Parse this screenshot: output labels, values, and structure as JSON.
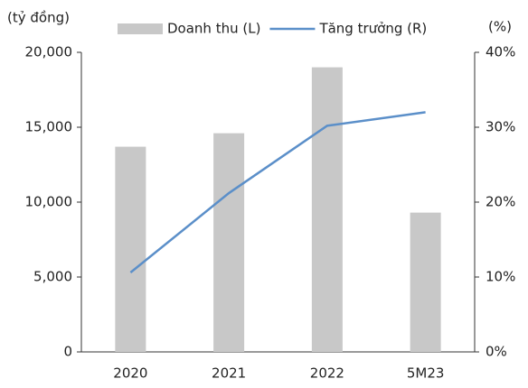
{
  "chart_data": {
    "type": "bar_line",
    "y_label": "(tỷ đồng)",
    "y2_label": "(%)",
    "categories": [
      "2020",
      "2021",
      "2022",
      "5M23"
    ],
    "series": [
      {
        "name": "Doanh thu (L)",
        "type": "bar",
        "color": "#c8c8c8",
        "values": [
          13700,
          14600,
          19000,
          9300
        ]
      },
      {
        "name": "Tăng trưởng (R)",
        "type": "line",
        "axis": "y2",
        "color": "#5b8fc9",
        "values": [
          10.6,
          21.2,
          30.2,
          32
        ]
      }
    ],
    "ylim": [
      0,
      20000
    ],
    "yticks": [
      0,
      {
        "value": 5000,
        "label": "5,000"
      },
      {
        "value": 10000,
        "label": "10,000"
      },
      {
        "value": 15000,
        "label": "15,000"
      },
      {
        "value": 20000,
        "label": "20,000"
      }
    ],
    "y2lim": [
      0,
      40
    ],
    "y2ticks": [
      {
        "value": 0,
        "label": "0%"
      },
      {
        "value": 10,
        "label": "10%"
      },
      {
        "value": 20,
        "label": "20%"
      },
      {
        "value": 30,
        "label": "30%"
      },
      {
        "value": 40,
        "label": "40%"
      }
    ],
    "legend": "top"
  }
}
